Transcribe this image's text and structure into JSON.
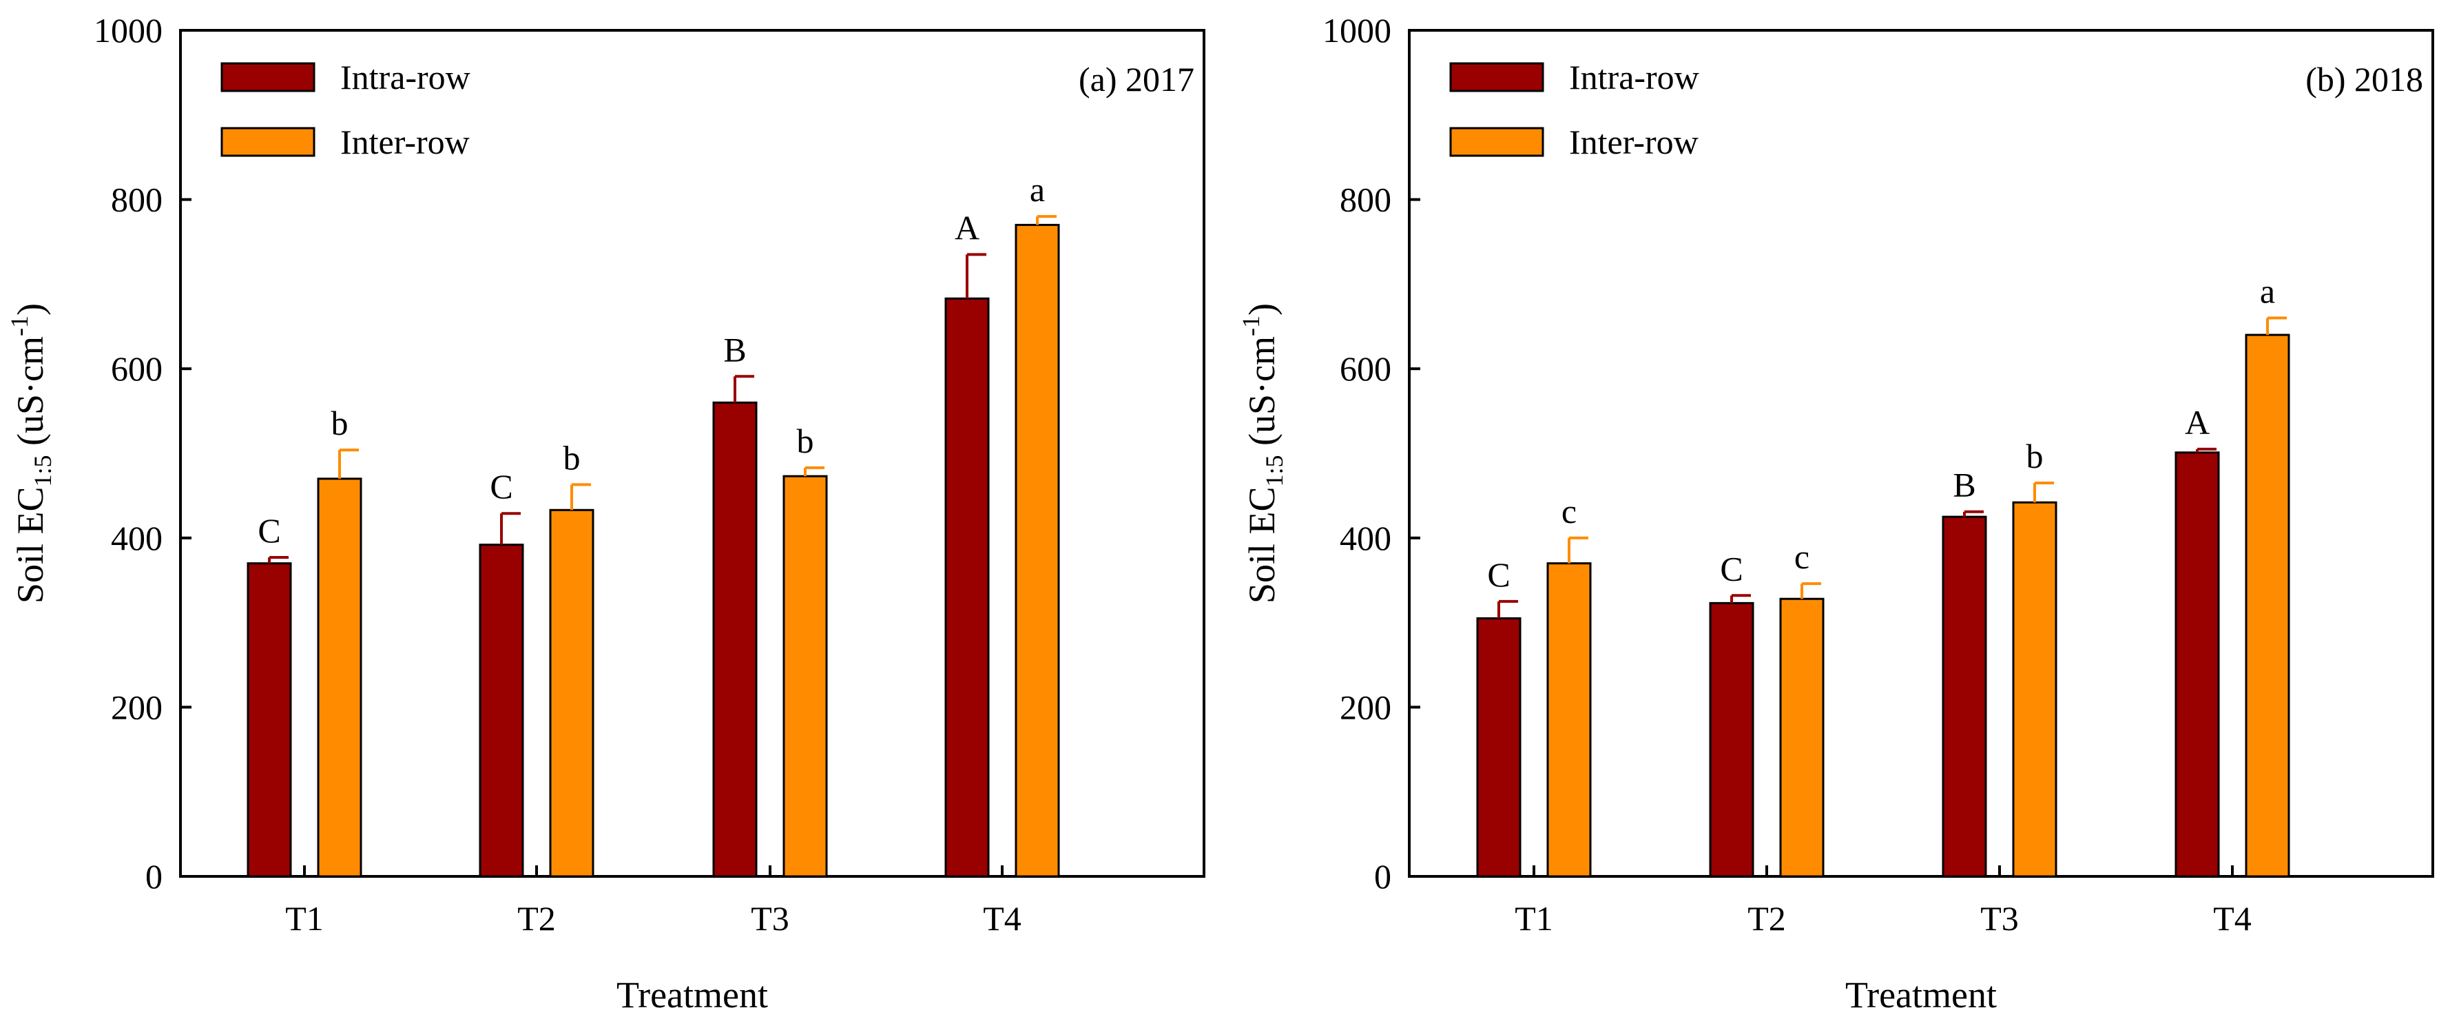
{
  "colors": {
    "intra": "#990000",
    "inter": "#FF8C00",
    "axis": "#000000"
  },
  "chart_data": [
    {
      "type": "bar",
      "panel_label": "(a) 2017",
      "xlabel": "Treatment",
      "ylabel": {
        "main": "Soil EC",
        "subscript": "1:5",
        "unit_prefix": " (uS·cm",
        "superscript": "-1",
        "unit_suffix": ")"
      },
      "ylim": [
        0,
        1000
      ],
      "yticks": [
        "0",
        "200",
        "400",
        "600",
        "800",
        "1000"
      ],
      "legend_position": "top-left",
      "categories": [
        "T1",
        "T2",
        "T3",
        "T4"
      ],
      "series": [
        {
          "name": "Intra-row",
          "values": [
            370,
            392,
            560,
            683
          ],
          "errors": [
            7,
            37,
            31,
            52
          ],
          "letters": [
            "C",
            "C",
            "B",
            "A"
          ]
        },
        {
          "name": "Inter-row",
          "values": [
            470,
            433,
            473,
            770
          ],
          "errors": [
            34,
            30,
            10,
            10
          ],
          "letters": [
            "b",
            "b",
            "b",
            "a"
          ]
        }
      ]
    },
    {
      "type": "bar",
      "panel_label": "(b) 2018",
      "xlabel": "Treatment",
      "ylabel": {
        "main": "Soil EC",
        "subscript": "1:5",
        "unit_prefix": " (uS·cm",
        "superscript": "-1",
        "unit_suffix": ")"
      },
      "ylim": [
        0,
        1000
      ],
      "yticks": [
        "0",
        "200",
        "400",
        "600",
        "800",
        "1000"
      ],
      "legend_position": "top-left",
      "categories": [
        "T1",
        "T2",
        "T3",
        "T4"
      ],
      "series": [
        {
          "name": "Intra-row",
          "values": [
            305,
            323,
            425,
            501
          ],
          "errors": [
            20,
            9,
            6,
            4
          ],
          "letters": [
            "C",
            "C",
            "B",
            "A"
          ]
        },
        {
          "name": "Inter-row",
          "values": [
            370,
            328,
            442,
            640
          ],
          "errors": [
            30,
            18,
            23,
            20
          ],
          "letters": [
            "c",
            "c",
            "b",
            "a"
          ]
        }
      ]
    }
  ]
}
